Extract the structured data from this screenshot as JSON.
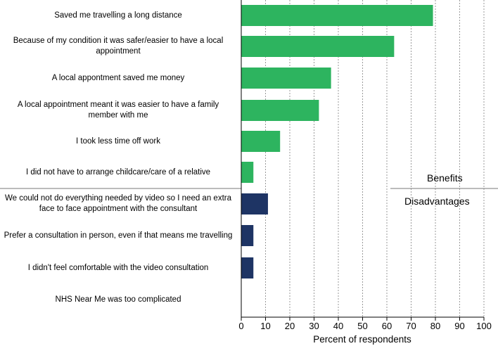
{
  "chart_data": {
    "type": "bar",
    "orientation": "horizontal",
    "xlabel": "Percent of respondents",
    "xlim": [
      0,
      100
    ],
    "xticks": [
      0,
      10,
      20,
      30,
      40,
      50,
      60,
      70,
      80,
      90,
      100
    ],
    "grid": "vertical dashed",
    "sections": [
      {
        "name": "Benefits",
        "color": "#2db45f",
        "categories": [
          "Saved me travelling a long distance",
          "Because of my condition it was safer/easier to have a local appointment",
          "A local appontment saved me money",
          "A local appointment meant it was easier to have a family member with me",
          "I took less time off work",
          "I did not have to arrange childcare/care of a relative"
        ],
        "values": [
          79,
          63,
          37,
          32,
          16,
          5
        ]
      },
      {
        "name": "Disadvantages",
        "color": "#1e3464",
        "categories": [
          "We could not do everything needed by video so I need an extra face to face appointment with the consultant",
          "Prefer a consultation in person, even if that means me travelling",
          "I didn't feel comfortable with the video consultation",
          "NHS Near Me was too complicated"
        ],
        "values": [
          11,
          5,
          5,
          0
        ]
      }
    ]
  }
}
